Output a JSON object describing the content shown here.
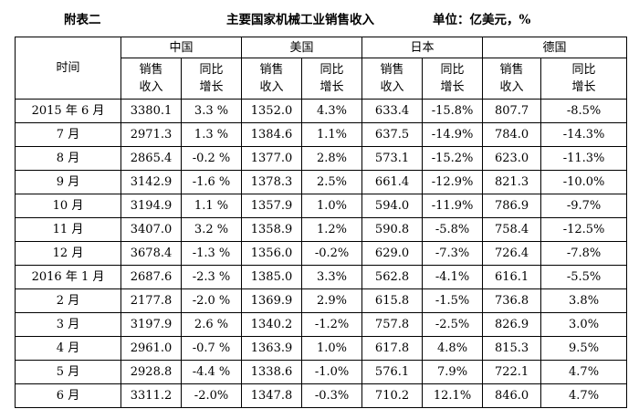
{
  "header": {
    "left": "附表二",
    "title": "主要国家机械工业销售收入",
    "unit": "单位：亿美元，%"
  },
  "table": {
    "time_label": "时间",
    "countries": [
      "中国",
      "美国",
      "日本",
      "德国"
    ],
    "sub_headers": [
      {
        "line1": "销售",
        "line2": "收入"
      },
      {
        "line1": "同比",
        "line2": "增长"
      }
    ],
    "rows": [
      {
        "time": "2015 年 6 月",
        "values": [
          "3380.1",
          "3.3 %",
          "1352.0",
          "4.3%",
          "633.4",
          "-15.8%",
          "807.7",
          "-8.5%"
        ]
      },
      {
        "time": "7 月",
        "values": [
          "2971.3",
          "1.3 %",
          "1384.6",
          "1.1%",
          "637.5",
          "-14.9%",
          "784.0",
          "-14.3%"
        ]
      },
      {
        "time": "8 月",
        "values": [
          "2865.4",
          "-0.2 %",
          "1377.0",
          "2.8%",
          "573.1",
          "-15.2%",
          "623.0",
          "-11.3%"
        ]
      },
      {
        "time": "9 月",
        "values": [
          "3142.9",
          "-1.6 %",
          "1378.3",
          "2.5%",
          "661.4",
          "-12.9%",
          "821.3",
          "-10.0%"
        ]
      },
      {
        "time": "10 月",
        "values": [
          "3194.9",
          "1.1 %",
          "1357.9",
          "1.0%",
          "594.0",
          "-11.9%",
          "786.9",
          "-9.7%"
        ]
      },
      {
        "time": "11 月",
        "values": [
          "3407.0",
          "3.2 %",
          "1358.9",
          "1.2%",
          "590.8",
          "-5.8%",
          "758.4",
          "-12.5%"
        ]
      },
      {
        "time": "12 月",
        "values": [
          "3678.4",
          "-1.3 %",
          "1356.0",
          "-0.2%",
          "629.0",
          "-7.3%",
          "726.4",
          "-7.8%"
        ]
      },
      {
        "time": "2016 年 1 月",
        "values": [
          "2687.6",
          "-2.3 %",
          "1385.0",
          "3.3%",
          "562.8",
          "-4.1%",
          "616.1",
          "-5.5%"
        ]
      },
      {
        "time": "2 月",
        "values": [
          "2177.8",
          "-2.0 %",
          "1369.9",
          "2.9%",
          "615.8",
          "-1.5%",
          "736.8",
          "3.8%"
        ]
      },
      {
        "time": "3 月",
        "values": [
          "3197.9",
          "2.6 %",
          "1340.2",
          "-1.2%",
          "757.8",
          "-2.5%",
          "826.9",
          "3.0%"
        ]
      },
      {
        "time": "4 月",
        "values": [
          "2961.0",
          "-0.7 %",
          "1363.9",
          "1.0%",
          "617.8",
          "4.8%",
          "815.3",
          "9.5%"
        ]
      },
      {
        "time": "5 月",
        "values": [
          "2928.8",
          "-4.4 %",
          "1338.6",
          "-1.0%",
          "576.1",
          "7.9%",
          "722.1",
          "4.7%"
        ]
      },
      {
        "time": "6 月",
        "values": [
          "3311.2",
          "-2.0%",
          "1347.8",
          "-0.3%",
          "710.2",
          "12.1%",
          "846.0",
          "4.7%"
        ]
      }
    ]
  }
}
